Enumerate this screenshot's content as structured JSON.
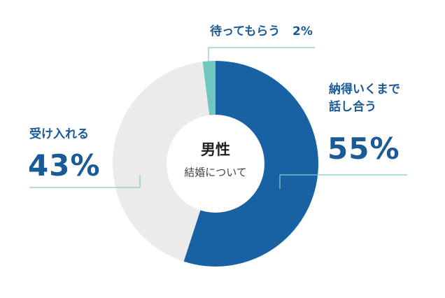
{
  "chart_data": {
    "type": "donut",
    "title": "男性",
    "subtitle": "結婚について",
    "categories": [
      "納得いくまで話し合う",
      "受け入れる",
      "待ってもらう"
    ],
    "values": [
      55,
      43,
      2
    ],
    "value_labels": [
      "55%",
      "43%",
      "2%"
    ],
    "colors": [
      "#1862a3",
      "#ebebeb",
      "#6fc7bf"
    ]
  }
}
